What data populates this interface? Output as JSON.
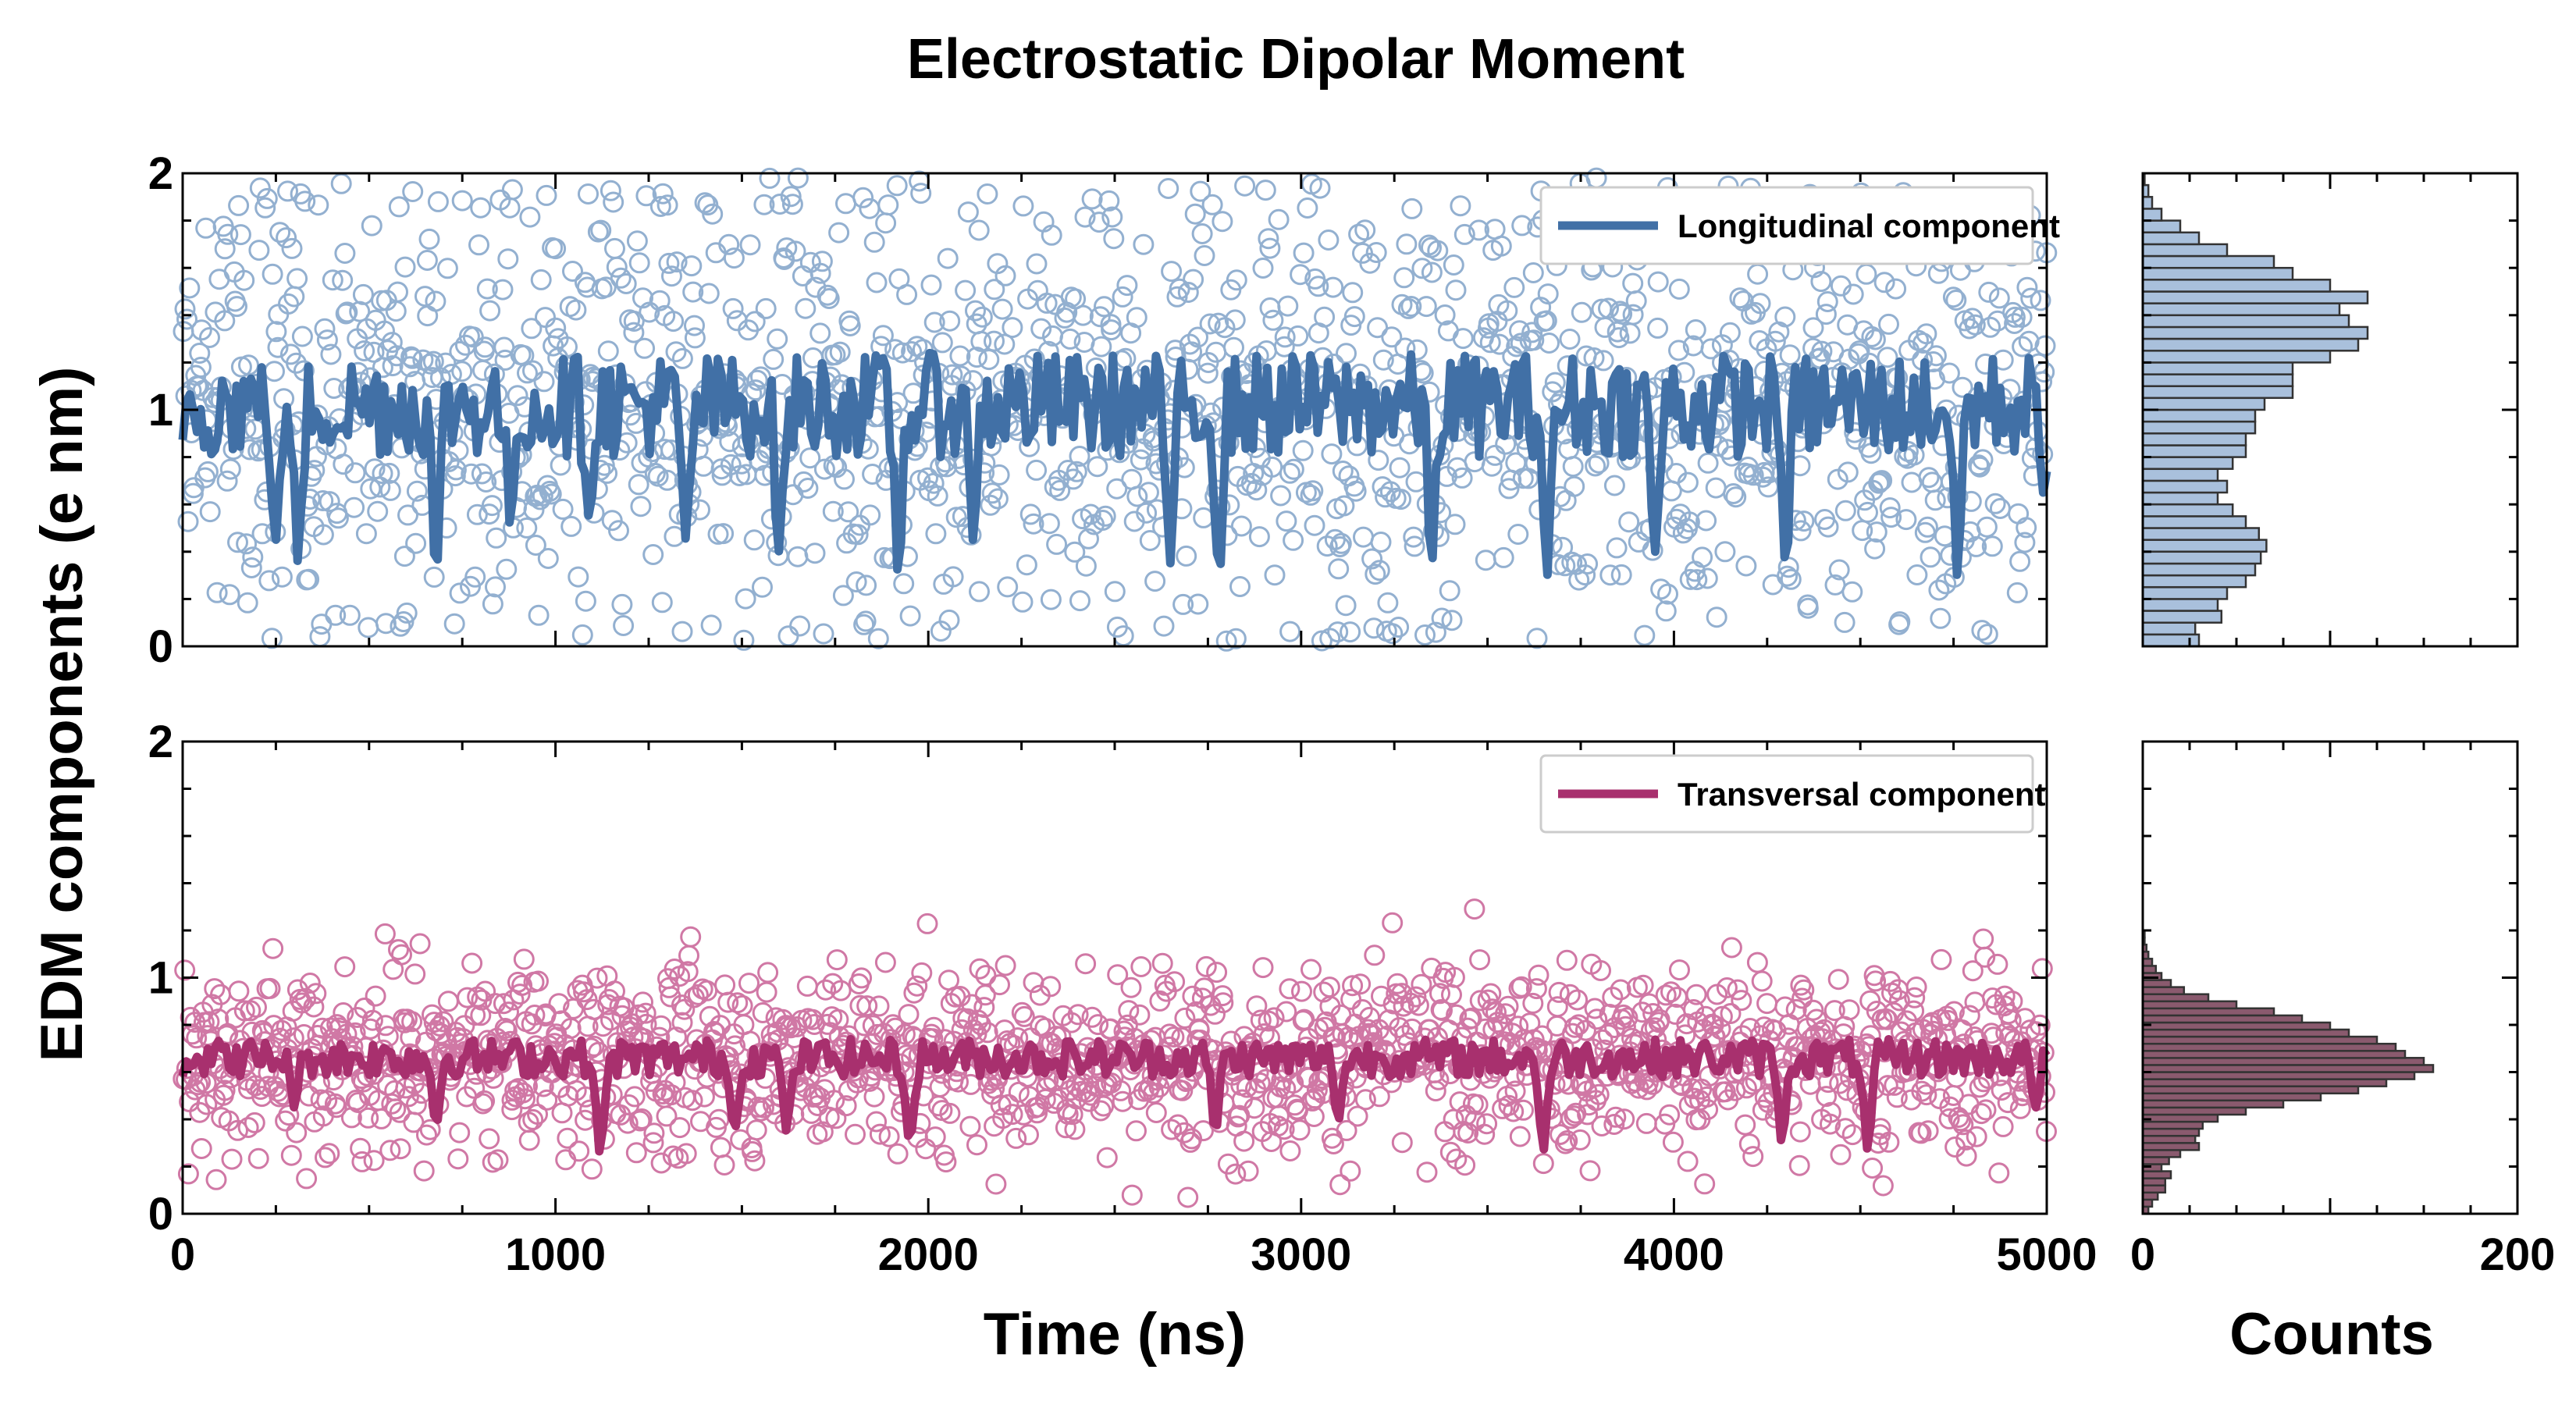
{
  "chart_data": {
    "type": "scatter",
    "title": "Electrostatic Dipolar Moment",
    "xlabel": "Time (ns)",
    "ylabel": "EDM components (e nm)",
    "hist_xlabel": "Counts",
    "x_ticks": [
      "0",
      "1000",
      "2000",
      "3000",
      "4000",
      "5000"
    ],
    "y_ticks": [
      "0",
      "1",
      "2"
    ],
    "hist_x_ticks": [
      "0",
      "200"
    ],
    "xlim": [
      0,
      5000
    ],
    "ylim": [
      0,
      2
    ],
    "hist_xlim": [
      0,
      200
    ],
    "legend_position": "top-right",
    "panels": [
      {
        "series_name": "Longitudinal component",
        "line_color": "#4170a6",
        "marker_color": "#88a8cc",
        "hist_fill": "#a9c0dc",
        "y_center": 1.02,
        "scatter_spread": 0.48,
        "line_spread": 0.22,
        "dips": [
          {
            "t": 250,
            "v": 0.45
          },
          {
            "t": 310,
            "v": 0.35
          },
          {
            "t": 680,
            "v": 0.3
          },
          {
            "t": 880,
            "v": 0.5
          },
          {
            "t": 1090,
            "v": 0.55
          },
          {
            "t": 1350,
            "v": 0.45
          },
          {
            "t": 1600,
            "v": 0.4
          },
          {
            "t": 1920,
            "v": 0.3
          },
          {
            "t": 2120,
            "v": 0.45
          },
          {
            "t": 2650,
            "v": 0.35
          },
          {
            "t": 2780,
            "v": 0.3
          },
          {
            "t": 3350,
            "v": 0.35
          },
          {
            "t": 3660,
            "v": 0.3
          },
          {
            "t": 3950,
            "v": 0.4
          },
          {
            "t": 4300,
            "v": 0.35
          },
          {
            "t": 4760,
            "v": 0.3
          },
          {
            "t": 4990,
            "v": 0.65
          }
        ],
        "histogram": {
          "bin_width": 0.05,
          "counts": [
            30,
            28,
            42,
            40,
            45,
            55,
            60,
            63,
            66,
            62,
            55,
            48,
            40,
            45,
            40,
            48,
            55,
            55,
            60,
            60,
            65,
            80,
            80,
            80,
            100,
            115,
            120,
            110,
            105,
            120,
            100,
            80,
            70,
            45,
            30,
            20,
            10,
            5,
            3,
            1
          ]
        }
      },
      {
        "series_name": "Transversal component",
        "line_color": "#a8306e",
        "marker_color": "#cc6a9c",
        "hist_fill": "#8a5a6e",
        "y_center": 0.66,
        "scatter_spread": 0.2,
        "line_spread": 0.08,
        "dips": [
          {
            "t": 300,
            "v": 0.45
          },
          {
            "t": 680,
            "v": 0.38
          },
          {
            "t": 1120,
            "v": 0.25
          },
          {
            "t": 1480,
            "v": 0.35
          },
          {
            "t": 1620,
            "v": 0.35
          },
          {
            "t": 1950,
            "v": 0.3
          },
          {
            "t": 2770,
            "v": 0.35
          },
          {
            "t": 3100,
            "v": 0.4
          },
          {
            "t": 3650,
            "v": 0.27
          },
          {
            "t": 4290,
            "v": 0.3
          },
          {
            "t": 4520,
            "v": 0.27
          },
          {
            "t": 4970,
            "v": 0.45
          }
        ],
        "histogram": {
          "bin_width": 0.03,
          "counts": [
            3,
            5,
            8,
            12,
            12,
            15,
            10,
            14,
            20,
            30,
            28,
            30,
            32,
            40,
            55,
            75,
            95,
            115,
            130,
            145,
            155,
            150,
            140,
            135,
            125,
            110,
            100,
            85,
            70,
            50,
            35,
            22,
            15,
            10,
            7,
            5,
            3,
            2,
            1,
            1
          ]
        }
      }
    ]
  }
}
